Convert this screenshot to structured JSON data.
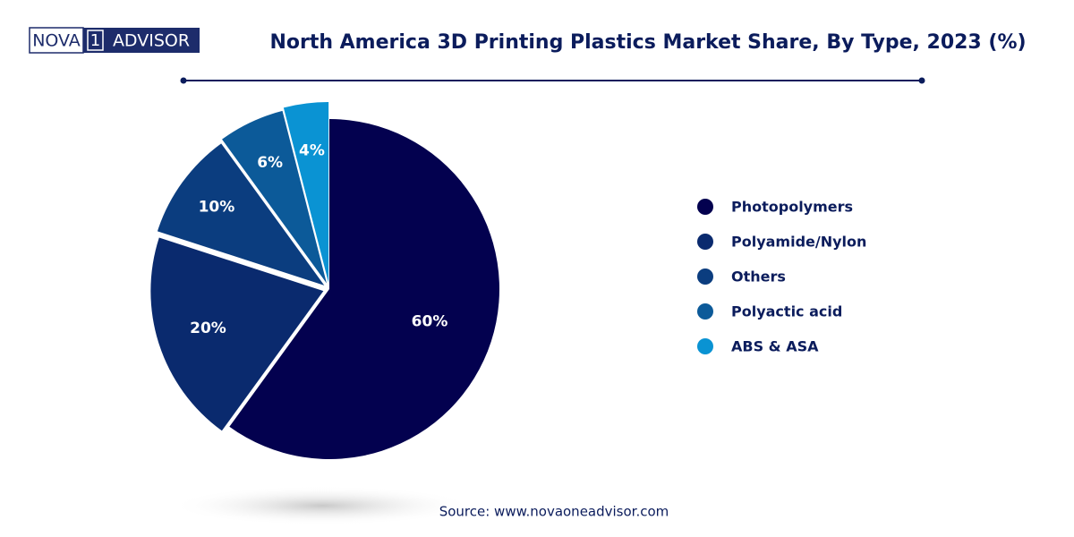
{
  "logo": [
    "NOVA",
    "1",
    "ADVISOR"
  ],
  "source": "Source: www.novaoneadvisor.com",
  "chart_data": {
    "type": "pie",
    "title": "North America 3D Printing Plastics Market Share, By Type, 2023 (%)",
    "categories": [
      "Photopolymers",
      "Polyamide/Nylon",
      "Others",
      "Polyactic acid",
      "ABS & ASA"
    ],
    "values": [
      60,
      20,
      10,
      6,
      4
    ],
    "value_labels": [
      "60%",
      "20%",
      "10%",
      "6%",
      "4%"
    ],
    "colors": [
      "#03014f",
      "#0a2a6e",
      "#0b3d7f",
      "#0c5a99",
      "#0a93d3"
    ],
    "legend": "right"
  }
}
